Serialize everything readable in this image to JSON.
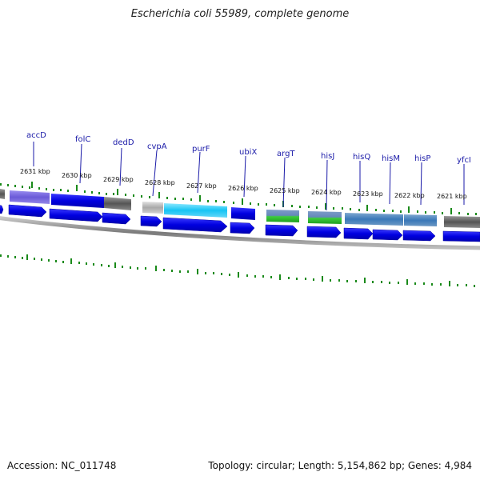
{
  "title": "Escherichia coli 55989, complete genome",
  "footer": {
    "accession": "Accession: NC_011748",
    "topology": "Topology: circular; Length: 5,154,862 bp; Genes: 4,984"
  },
  "colors": {
    "tick": "#1a8a1a",
    "label": "#1a1aa8",
    "cds_arrow": "#0000e6",
    "backbone": "#888888"
  },
  "kbp_labels": [
    "2631 kbp",
    "2630 kbp",
    "2629 kbp",
    "2628 kbp",
    "2627 kbp",
    "2626 kbp",
    "2625 kbp",
    "2624 kbp",
    "2623 kbp",
    "2622 kbp",
    "2621 kbp"
  ],
  "genes": [
    "accD",
    "folC",
    "dedD",
    "cvpA",
    "purF",
    "ubiX",
    "argT",
    "hisJ",
    "hisQ",
    "hisM",
    "hisP",
    "yfcI"
  ]
}
